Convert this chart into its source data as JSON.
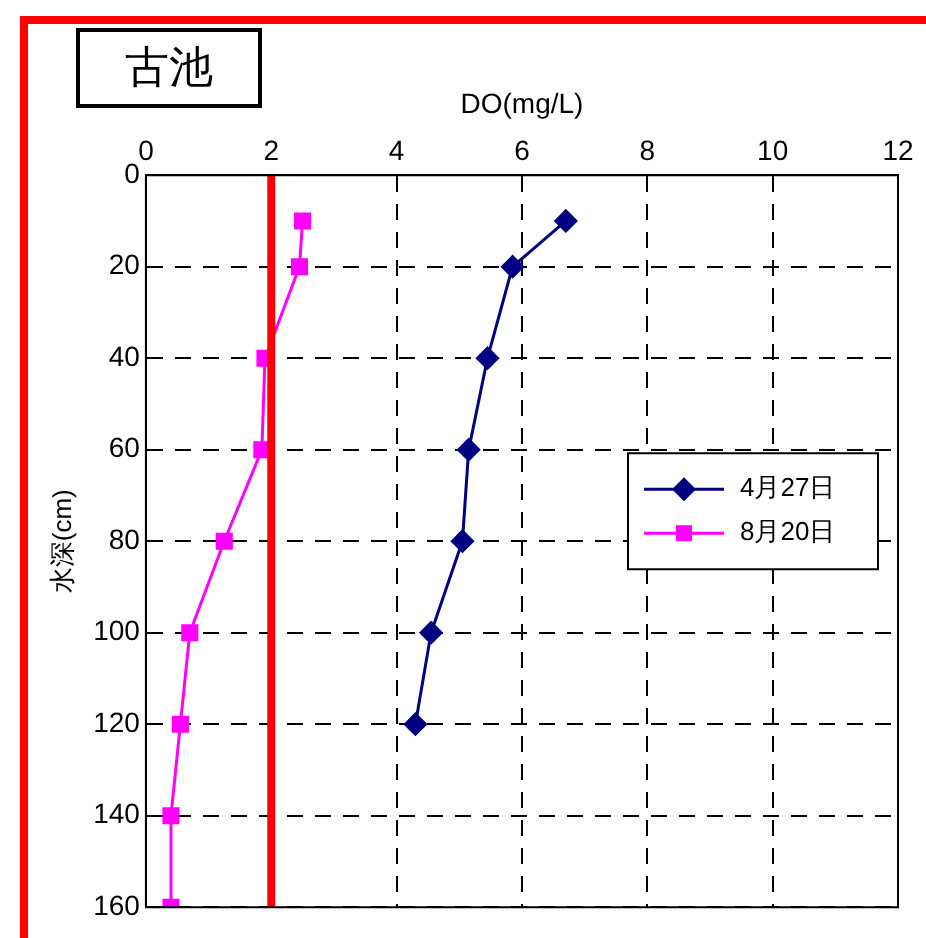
{
  "chart_data": {
    "type": "line",
    "title": "古池",
    "xlabel": "DO(mg/L)",
    "ylabel": "水深(cm)",
    "xlim": [
      0,
      12
    ],
    "xticks": [
      0,
      2,
      4,
      6,
      8,
      10,
      12
    ],
    "ylim": [
      160,
      0
    ],
    "yticks": [
      0,
      20,
      40,
      60,
      80,
      100,
      120,
      140,
      160
    ],
    "grid": true,
    "legend": "right",
    "line_style": "solid",
    "ref_lines": [
      {
        "axis": "x",
        "value": 2,
        "color": "#ff0000"
      }
    ],
    "series": [
      {
        "name": "4月27日",
        "color": "#000080",
        "marker": "diamond",
        "x": [
          6.7,
          5.85,
          5.45,
          5.15,
          5.05,
          4.55,
          4.3
        ],
        "values": [
          10,
          20,
          40,
          60,
          80,
          100,
          120
        ]
      },
      {
        "name": "8月20日",
        "color": "#ff00ff",
        "marker": "square",
        "x": [
          2.5,
          2.45,
          1.9,
          1.85,
          1.25,
          0.7,
          0.55,
          0.4,
          0.4
        ],
        "values": [
          10,
          20,
          40,
          60,
          80,
          100,
          120,
          140,
          160
        ]
      }
    ]
  }
}
